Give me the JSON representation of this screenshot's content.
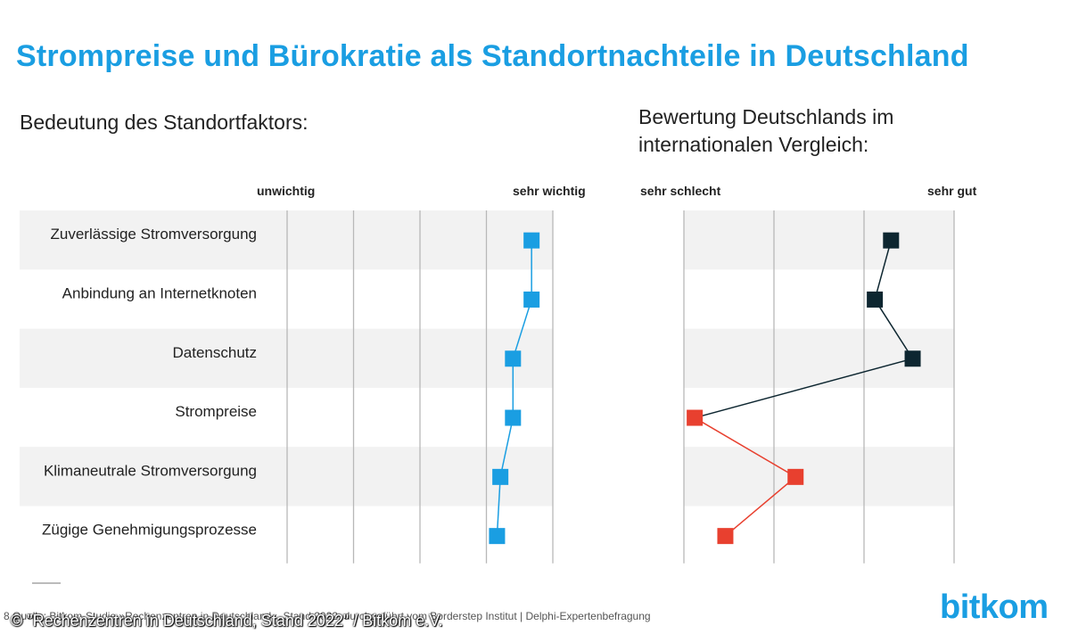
{
  "title": "Strompreise und Bürokratie als Standortnachteile in Deutschland",
  "chart_data": [
    {
      "type": "line",
      "subtitle": "Bedeutung des Standortfaktors:",
      "axis_left_label": "unwichtig",
      "axis_right_label": "sehr wichtig",
      "categories": [
        "Zuverlässige Stromversorgung",
        "Anbindung an Internetknoten",
        "Datenschutz",
        "Strompreise",
        "Klimaneutrale Stromversorgung",
        "Zügige Genehmigungsprozesse"
      ],
      "values": [
        3.68,
        3.68,
        3.4,
        3.4,
        3.21,
        3.16
      ],
      "xlim": [
        0,
        4
      ],
      "grid": true,
      "colors": {
        "marker": "#1a9ee2",
        "line": "#1a9ee2"
      }
    },
    {
      "type": "line",
      "subtitle": "Bewertung Deutschlands im internationalen Vergleich:",
      "axis_left_label": "sehr schlecht",
      "axis_right_label": "sehr gut",
      "categories": [
        "Zuverlässige Stromversorgung",
        "Anbindung an Internetknoten",
        "Datenschutz",
        "Strompreise",
        "Klimaneutrale Stromversorgung",
        "Zügige Genehmigungsprozesse"
      ],
      "values": [
        2.3,
        2.12,
        2.54,
        0.12,
        1.24,
        0.46
      ],
      "xlim": [
        0,
        3
      ],
      "grid": true,
      "marker_colors": [
        "#0d2630",
        "#0d2630",
        "#0d2630",
        "#e8402f",
        "#e8402f",
        "#e8402f"
      ],
      "segment_colors": [
        "#0d2630",
        "#0d2630",
        "#0d2630",
        "#e8402f",
        "#e8402f"
      ]
    }
  ],
  "source": "Quelle: Bitkom-Studie »Rechenzentren in Deutschland«, Stand 2022, durchgeführt vom Borderstep Institut | Delphi-Expertenbefragung",
  "page_number": "8",
  "watermark": "© \"Rechenzentren in Deutschland, Stand 2022\" / Bitkom e.V.",
  "logo_text": "bitkom",
  "colors": {
    "title": "#1a9ee2",
    "band": "#f2f2f2",
    "grid": "#b8b8b8"
  }
}
